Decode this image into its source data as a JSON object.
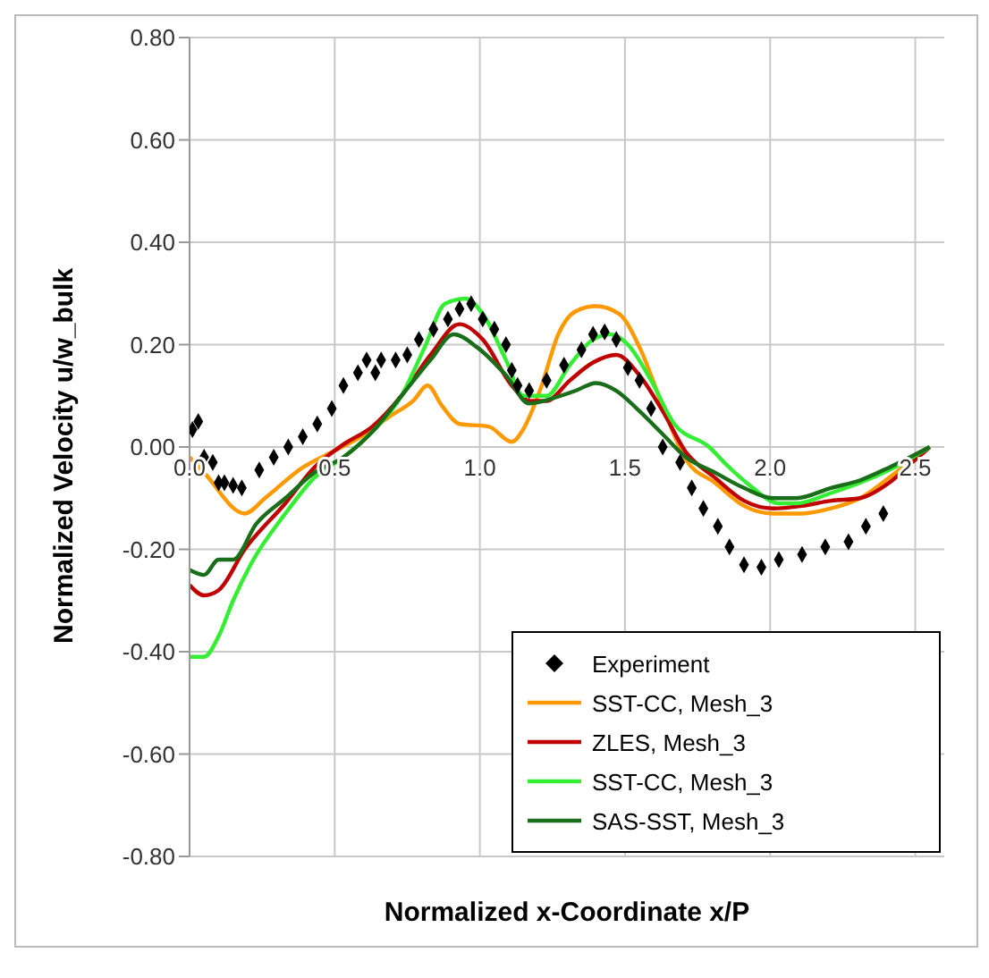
{
  "chart_data": {
    "type": "line",
    "xlabel": "Normalized x-Coordinate x/P",
    "ylabel": "Normalized Velocity  u/w_bulk",
    "xlim": [
      0,
      2.6
    ],
    "xticks": [
      {
        "value": 0,
        "label": "0.0"
      },
      {
        "value": 0.5,
        "label": "0.5"
      },
      {
        "value": 1,
        "label": "1.0"
      },
      {
        "value": 1.5,
        "label": "1.5"
      },
      {
        "value": 2,
        "label": "2.0"
      },
      {
        "value": 2.5,
        "label": "2.5"
      }
    ],
    "ylim": [
      -0.8,
      0.8
    ],
    "yticks": [
      {
        "value": -0.8,
        "label": "-0.80"
      },
      {
        "value": -0.6,
        "label": "-0.60"
      },
      {
        "value": -0.4,
        "label": "-0.40"
      },
      {
        "value": -0.2,
        "label": "-0.20"
      },
      {
        "value": 0,
        "label": "0.00"
      },
      {
        "value": 0.2,
        "label": "0.20"
      },
      {
        "value": 0.4,
        "label": "0.40"
      },
      {
        "value": 0.6,
        "label": "0.60"
      },
      {
        "value": 0.8,
        "label": "0.80"
      }
    ],
    "grid": true,
    "legend": "bottom right",
    "line_style": "solid",
    "series": [
      {
        "name": "Experiment",
        "type": "scatter",
        "marker": "diamond",
        "color": "#000000",
        "x": [
          0.01,
          0.03,
          0.05,
          0.08,
          0.1,
          0.12,
          0.15,
          0.18,
          0.24,
          0.29,
          0.34,
          0.39,
          0.44,
          0.49,
          0.53,
          0.58,
          0.61,
          0.64,
          0.66,
          0.71,
          0.75,
          0.79,
          0.84,
          0.89,
          0.93,
          0.97,
          1.01,
          1.05,
          1.09,
          1.11,
          1.13,
          1.17,
          1.23,
          1.29,
          1.35,
          1.39,
          1.43,
          1.47,
          1.51,
          1.55,
          1.59,
          1.63,
          1.69,
          1.73,
          1.77,
          1.82,
          1.86,
          1.91,
          1.97,
          2.03,
          2.11,
          2.19,
          2.27,
          2.33,
          2.39
        ],
        "values": [
          0.034,
          0.05,
          -0.02,
          -0.03,
          -0.07,
          -0.07,
          -0.075,
          -0.08,
          -0.045,
          -0.02,
          0,
          0.02,
          0.045,
          0.075,
          0.12,
          0.145,
          0.17,
          0.145,
          0.17,
          0.17,
          0.18,
          0.21,
          0.23,
          0.25,
          0.27,
          0.28,
          0.25,
          0.23,
          0.2,
          0.15,
          0.12,
          0.11,
          0.13,
          0.16,
          0.19,
          0.22,
          0.225,
          0.21,
          0.155,
          0.13,
          0.075,
          0,
          -0.03,
          -0.08,
          -0.12,
          -0.155,
          -0.195,
          -0.23,
          -0.235,
          -0.22,
          -0.21,
          -0.195,
          -0.185,
          -0.155,
          -0.13
        ]
      },
      {
        "name": "SST-CC, Mesh_3",
        "color": "#ff9900",
        "x": [
          0,
          0.05,
          0.19,
          0.26,
          0.39,
          0.49,
          0.59,
          0.69,
          0.77,
          0.82,
          0.87,
          0.93,
          1.03,
          1.11,
          1.15,
          1.21,
          1.27,
          1.33,
          1.4,
          1.48,
          1.55,
          1.63,
          1.71,
          1.81,
          1.91,
          2.01,
          2.11,
          2.21,
          2.31,
          2.41,
          2.49,
          2.55
        ],
        "values": [
          -0.02,
          -0.05,
          -0.13,
          -0.1,
          -0.04,
          -0.01,
          0.02,
          0.06,
          0.09,
          0.12,
          0.08,
          0.045,
          0.04,
          0.01,
          0.035,
          0.115,
          0.22,
          0.265,
          0.275,
          0.26,
          0.195,
          0.08,
          -0.025,
          -0.07,
          -0.115,
          -0.13,
          -0.13,
          -0.12,
          -0.1,
          -0.06,
          -0.025,
          0
        ]
      },
      {
        "name": "ZLES, Mesh_3",
        "color": "#c00000",
        "x": [
          0,
          0.05,
          0.1,
          0.19,
          0.33,
          0.43,
          0.53,
          0.63,
          0.73,
          0.83,
          0.93,
          1.01,
          1.11,
          1.17,
          1.23,
          1.31,
          1.39,
          1.47,
          1.55,
          1.63,
          1.71,
          1.81,
          1.91,
          2.01,
          2.11,
          2.21,
          2.31,
          2.41,
          2.49,
          2.55
        ],
        "values": [
          -0.27,
          -0.29,
          -0.28,
          -0.2,
          -0.11,
          -0.04,
          0.005,
          0.04,
          0.1,
          0.18,
          0.24,
          0.21,
          0.12,
          0.09,
          0.09,
          0.13,
          0.165,
          0.18,
          0.14,
          0.07,
          -0.01,
          -0.06,
          -0.105,
          -0.12,
          -0.115,
          -0.105,
          -0.1,
          -0.07,
          -0.03,
          0
        ]
      },
      {
        "name": "SST-CC, Mesh_3",
        "color": "#33ee33",
        "x": [
          0,
          0.05,
          0.1,
          0.15,
          0.21,
          0.33,
          0.43,
          0.53,
          0.63,
          0.73,
          0.81,
          0.88,
          0.95,
          1.01,
          1.09,
          1.15,
          1.23,
          1.31,
          1.39,
          1.45,
          1.51,
          1.59,
          1.67,
          1.79,
          1.85,
          1.93,
          2.03,
          2.09,
          2.21,
          2.31,
          2.41,
          2.55
        ],
        "values": [
          -0.41,
          -0.41,
          -0.37,
          -0.3,
          -0.23,
          -0.13,
          -0.06,
          -0.02,
          0.03,
          0.1,
          0.195,
          0.28,
          0.29,
          0.26,
          0.17,
          0.1,
          0.1,
          0.16,
          0.21,
          0.22,
          0.2,
          0.13,
          0.045,
          0,
          -0.035,
          -0.075,
          -0.11,
          -0.11,
          -0.09,
          -0.07,
          -0.045,
          0
        ]
      },
      {
        "name": "SAS-SST, Mesh_3",
        "color": "#1a6e1a",
        "x": [
          0,
          0.05,
          0.1,
          0.15,
          0.23,
          0.33,
          0.43,
          0.53,
          0.63,
          0.73,
          0.83,
          0.91,
          0.99,
          1.09,
          1.17,
          1.25,
          1.33,
          1.4,
          1.47,
          1.55,
          1.63,
          1.71,
          1.81,
          1.91,
          2.01,
          2.09,
          2.21,
          2.31,
          2.41,
          2.55
        ],
        "values": [
          -0.24,
          -0.25,
          -0.22,
          -0.22,
          -0.15,
          -0.1,
          -0.05,
          -0.02,
          0.03,
          0.1,
          0.17,
          0.22,
          0.195,
          0.14,
          0.085,
          0.095,
          0.11,
          0.125,
          0.11,
          0.07,
          0.025,
          -0.02,
          -0.05,
          -0.08,
          -0.1,
          -0.1,
          -0.08,
          -0.065,
          -0.04,
          0
        ]
      }
    ]
  }
}
